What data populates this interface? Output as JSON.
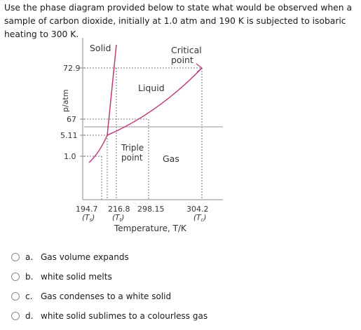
{
  "question": "Use the phase diagram provided below to state what would be observed when a sample of carbon dioxide, initially at 1.0 atm and 190 K is subjected to isobaric heating to 300 K.",
  "diagram": {
    "regions": {
      "solid": "Solid",
      "liquid": "Liquid",
      "gas": "Gas"
    },
    "critical_label": [
      "Critical",
      "point"
    ],
    "triple_label": [
      "Triple",
      "point"
    ],
    "ylabel": "p/atm",
    "xlabel": "Temperature, T/K",
    "y_ticks": [
      "72.9",
      "67",
      "5.11",
      "1.0"
    ],
    "x_ticks": [
      "194.7",
      "216.8",
      "298.15",
      "304.2"
    ],
    "x_sub": [
      "(T",
      "s",
      ")",
      "(T",
      "t",
      ")",
      "(T",
      "c",
      ")"
    ]
  },
  "options": [
    {
      "letter": "a.",
      "text": "Gas volume expands"
    },
    {
      "letter": "b.",
      "text": "white solid melts"
    },
    {
      "letter": "c.",
      "text": "Gas condenses to a white solid"
    },
    {
      "letter": "d.",
      "text": "white solid sublimes to a colourless gas"
    }
  ]
}
